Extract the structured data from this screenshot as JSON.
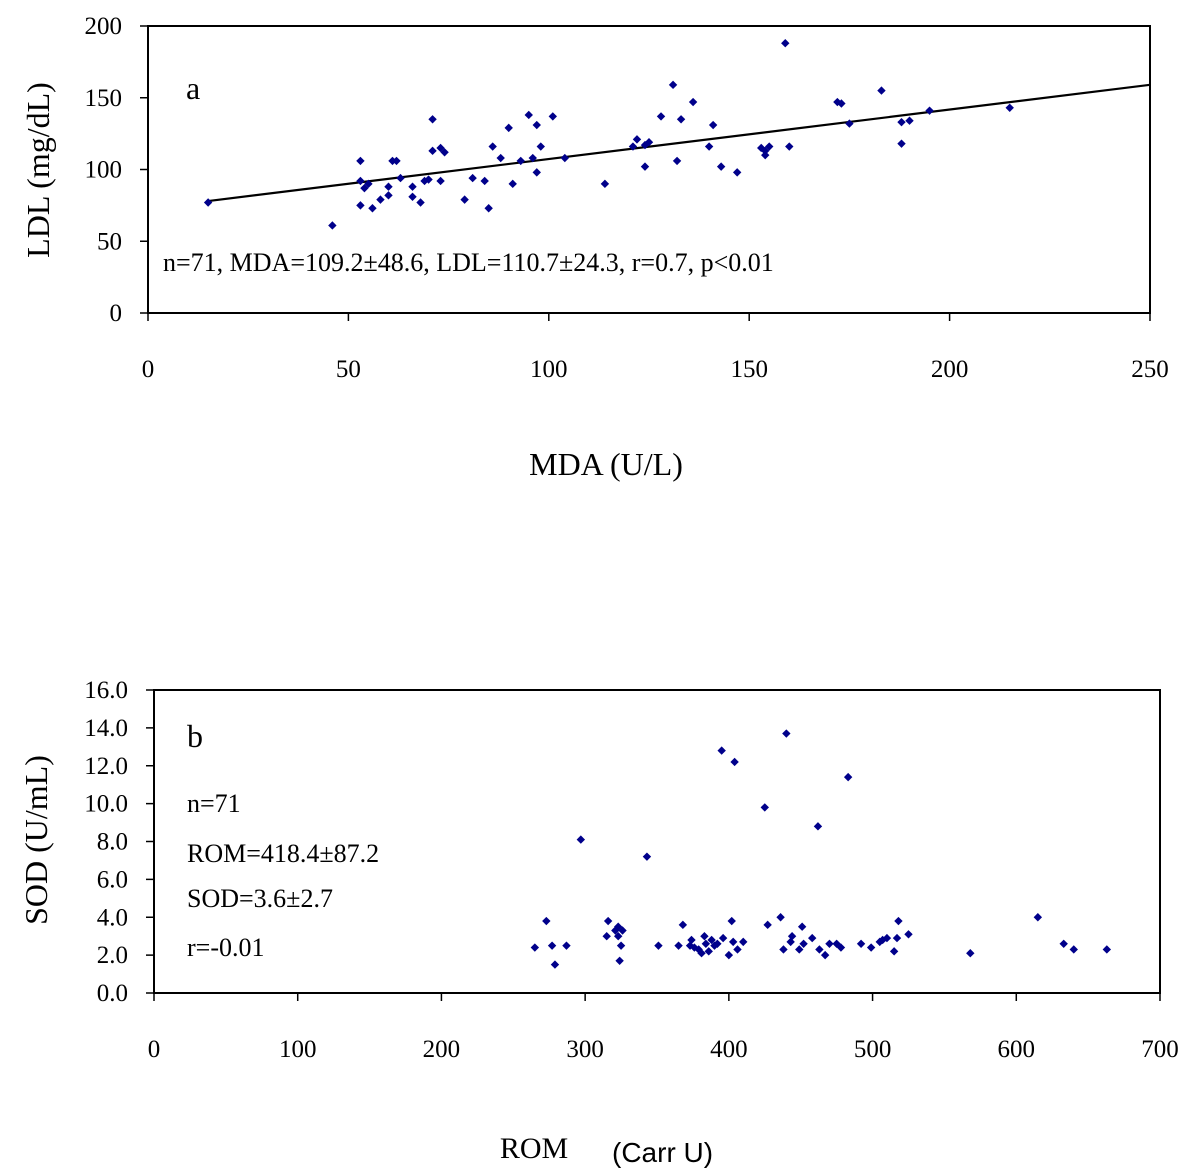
{
  "chart_data": [
    {
      "type": "scatter",
      "panel_label": "a",
      "xlabel": "MDA (U/L)",
      "ylabel": "LDL (mg/dL)",
      "xlim": [
        0,
        250
      ],
      "ylim": [
        0,
        200
      ],
      "xticks": [
        "0",
        "50",
        "100",
        "150",
        "200",
        "250"
      ],
      "yticks": [
        "0",
        "50",
        "100",
        "150",
        "200"
      ],
      "annotations": [
        "n=71,  MDA=109.2±48.6,  LDL=110.7±24.3,   r=0.7,  p<0.01"
      ],
      "marker_color": "#00008B",
      "trendline": {
        "x": [
          15,
          250
        ],
        "y": [
          78,
          159
        ]
      },
      "points": [
        [
          15,
          77
        ],
        [
          46,
          61
        ],
        [
          53,
          92
        ],
        [
          53,
          106
        ],
        [
          53,
          75
        ],
        [
          54,
          87
        ],
        [
          55,
          90
        ],
        [
          56,
          73
        ],
        [
          58,
          79
        ],
        [
          60,
          82
        ],
        [
          60,
          88
        ],
        [
          61,
          106
        ],
        [
          62,
          106
        ],
        [
          63,
          94
        ],
        [
          66,
          88
        ],
        [
          66,
          81
        ],
        [
          68,
          77
        ],
        [
          69,
          92
        ],
        [
          70,
          93
        ],
        [
          71,
          135
        ],
        [
          71,
          113
        ],
        [
          73,
          92
        ],
        [
          73,
          115
        ],
        [
          74,
          112
        ],
        [
          79,
          79
        ],
        [
          81,
          94
        ],
        [
          84,
          92
        ],
        [
          85,
          73
        ],
        [
          86,
          116
        ],
        [
          88,
          108
        ],
        [
          90,
          129
        ],
        [
          91,
          90
        ],
        [
          93,
          106
        ],
        [
          95,
          138
        ],
        [
          96,
          108
        ],
        [
          97,
          98
        ],
        [
          97,
          131
        ],
        [
          98,
          116
        ],
        [
          101,
          137
        ],
        [
          104,
          108
        ],
        [
          114,
          90
        ],
        [
          121,
          116
        ],
        [
          122,
          121
        ],
        [
          124,
          102
        ],
        [
          124,
          117
        ],
        [
          125,
          119
        ],
        [
          128,
          137
        ],
        [
          131,
          159
        ],
        [
          132,
          106
        ],
        [
          133,
          135
        ],
        [
          136,
          147
        ],
        [
          140,
          116
        ],
        [
          141,
          131
        ],
        [
          143,
          102
        ],
        [
          147,
          98
        ],
        [
          153,
          115
        ],
        [
          154,
          110
        ],
        [
          154,
          113
        ],
        [
          155,
          116
        ],
        [
          159,
          188
        ],
        [
          160,
          116
        ],
        [
          172,
          147
        ],
        [
          173,
          146
        ],
        [
          175,
          132
        ],
        [
          183,
          155
        ],
        [
          188,
          133
        ],
        [
          188,
          118
        ],
        [
          190,
          134
        ],
        [
          195,
          141
        ],
        [
          215,
          143
        ]
      ]
    },
    {
      "type": "scatter",
      "panel_label": "b",
      "xlabel": "ROM",
      "xlabel_unit": "(Carr U)",
      "ylabel": "SOD (U/mL)",
      "xlim": [
        0,
        700
      ],
      "ylim": [
        0,
        16
      ],
      "xticks": [
        "0",
        "100",
        "200",
        "300",
        "400",
        "500",
        "600",
        "700"
      ],
      "yticks": [
        "0.0",
        "2.0",
        "4.0",
        "6.0",
        "8.0",
        "10.0",
        "12.0",
        "14.0",
        "16.0"
      ],
      "annotations": [
        "n=71",
        "ROM=418.4±87.2",
        "SOD=3.6±2.7",
        "r=-0.01"
      ],
      "marker_color": "#00008B",
      "points": [
        [
          265,
          2.4
        ],
        [
          273,
          3.8
        ],
        [
          277,
          2.5
        ],
        [
          279,
          1.5
        ],
        [
          287,
          2.5
        ],
        [
          297,
          8.1
        ],
        [
          315,
          3.0
        ],
        [
          316,
          3.8
        ],
        [
          321,
          3.3
        ],
        [
          323,
          3.5
        ],
        [
          323,
          3.0
        ],
        [
          324,
          1.7
        ],
        [
          325,
          2.5
        ],
        [
          326,
          3.3
        ],
        [
          351,
          2.5
        ],
        [
          343,
          7.2
        ],
        [
          365,
          2.5
        ],
        [
          368,
          3.6
        ],
        [
          373,
          2.5
        ],
        [
          374,
          2.8
        ],
        [
          376,
          2.4
        ],
        [
          379,
          2.3
        ],
        [
          381,
          2.1
        ],
        [
          383,
          3.0
        ],
        [
          384,
          2.6
        ],
        [
          386,
          2.2
        ],
        [
          388,
          2.8
        ],
        [
          390,
          2.5
        ],
        [
          392,
          2.6
        ],
        [
          395,
          12.8
        ],
        [
          396,
          2.9
        ],
        [
          400,
          2.0
        ],
        [
          402,
          3.8
        ],
        [
          403,
          2.7
        ],
        [
          404,
          12.2
        ],
        [
          406,
          2.3
        ],
        [
          410,
          2.7
        ],
        [
          425,
          9.8
        ],
        [
          427,
          3.6
        ],
        [
          436,
          4.0
        ],
        [
          438,
          2.3
        ],
        [
          440,
          13.7
        ],
        [
          443,
          2.7
        ],
        [
          444,
          3.0
        ],
        [
          449,
          2.3
        ],
        [
          451,
          3.5
        ],
        [
          452,
          2.6
        ],
        [
          458,
          2.9
        ],
        [
          462,
          8.8
        ],
        [
          463,
          2.3
        ],
        [
          467,
          2.0
        ],
        [
          470,
          2.6
        ],
        [
          475,
          2.6
        ],
        [
          478,
          2.4
        ],
        [
          483,
          11.4
        ],
        [
          492,
          2.6
        ],
        [
          499,
          2.4
        ],
        [
          505,
          2.7
        ],
        [
          507,
          2.8
        ],
        [
          510,
          2.9
        ],
        [
          515,
          2.2
        ],
        [
          517,
          2.9
        ],
        [
          518,
          3.8
        ],
        [
          525,
          3.1
        ],
        [
          568,
          2.1
        ],
        [
          615,
          4.0
        ],
        [
          633,
          2.6
        ],
        [
          640,
          2.3
        ],
        [
          663,
          2.3
        ]
      ]
    }
  ]
}
